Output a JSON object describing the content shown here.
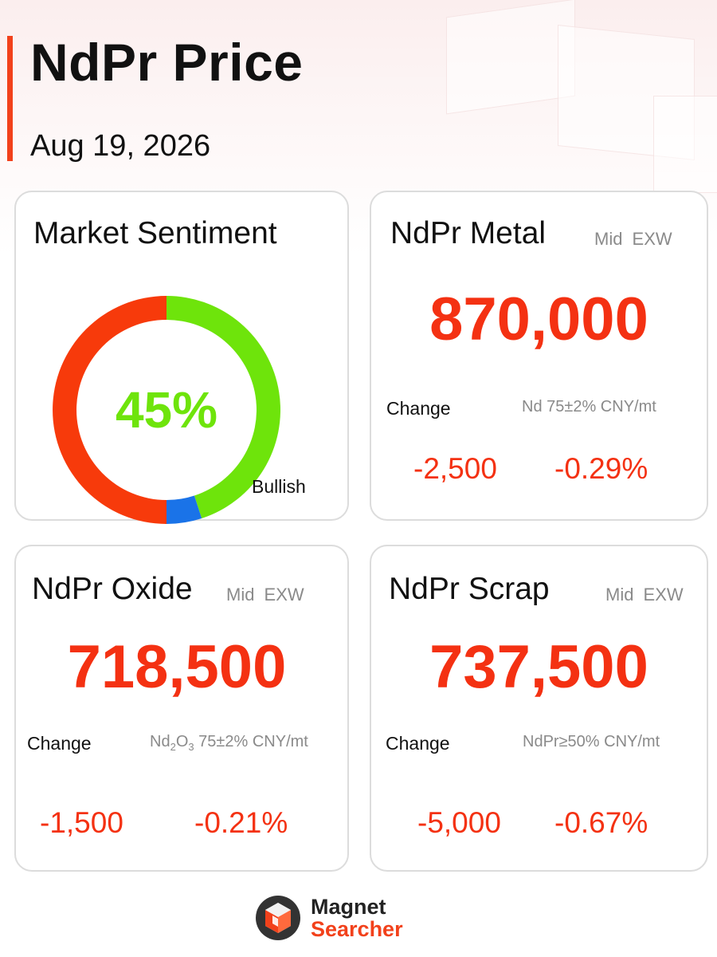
{
  "header": {
    "title": "NdPr Price",
    "date": "Aug 19, 2026"
  },
  "colors": {
    "accent": "#f2411b",
    "price_red": "#f43112",
    "bearish": "#f73a0b",
    "bullish": "#6ee40b",
    "neutral": "#1a73e8"
  },
  "sentiment": {
    "title": "Market Sentiment",
    "percent_label": "45%",
    "label": "Bullish",
    "segments": [
      {
        "name": "bullish",
        "fraction": 0.45,
        "color": "#6ee40b"
      },
      {
        "name": "neutral",
        "fraction": 0.05,
        "color": "#1a73e8"
      },
      {
        "name": "bearish",
        "fraction": 0.5,
        "color": "#f73a0b"
      }
    ]
  },
  "metal": {
    "title": "NdPr Metal",
    "meta": "Mid EXW",
    "price": "870,000",
    "change_label": "Change",
    "spec": "Nd 75±2% CNY/mt",
    "change_abs": "-2,500",
    "change_pct": "-0.29%"
  },
  "oxide": {
    "title": "NdPr Oxide",
    "meta": "Mid EXW",
    "price": "718,500",
    "change_label": "Change",
    "spec_prefix": "Nd",
    "spec_sub1": "2",
    "spec_mid": "O",
    "spec_sub2": "3",
    "spec_rest": " 75±2% CNY/mt",
    "change_abs": "-1,500",
    "change_pct": "-0.21%"
  },
  "scrap": {
    "title": "NdPr Scrap",
    "meta": "Mid EXW",
    "price": "737,500",
    "change_label": "Change",
    "spec": "NdPr≥50% CNY/mt",
    "change_abs": "-5,000",
    "change_pct": "-0.67%"
  },
  "logo": {
    "line1": "Magnet",
    "line2": "Searcher",
    "icon": "hexagon-cube-icon"
  }
}
